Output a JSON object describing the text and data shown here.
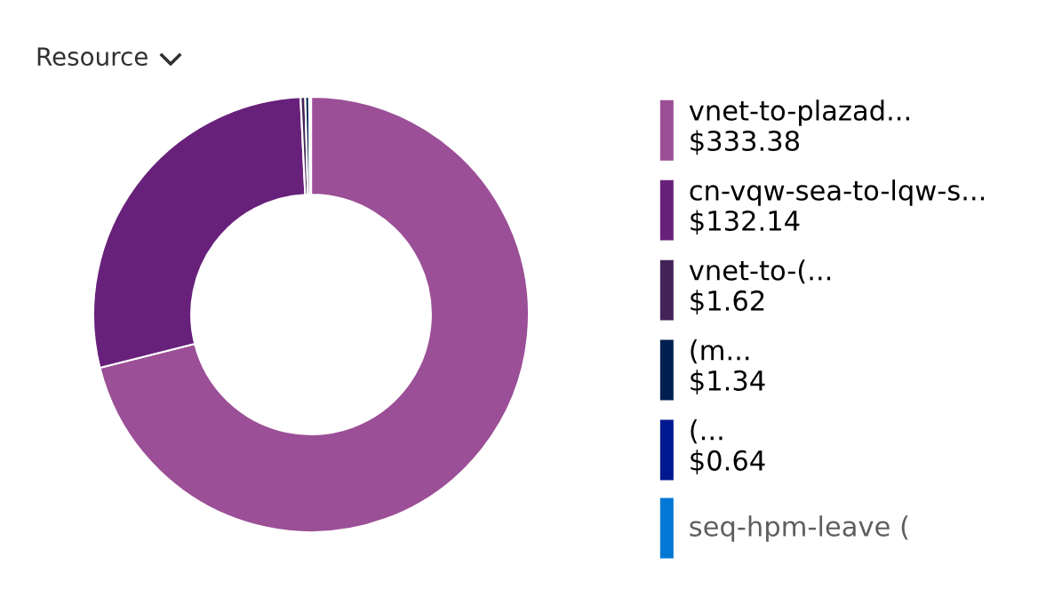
{
  "chart_data": {
    "type": "donut",
    "title": "Resource",
    "categories": [
      "vnet-to-plazad...",
      "cn-vqw-sea-to-lqw-s...",
      "vnet-to-(...",
      "(m...",
      "(...",
      "seq-hpm-leave ("
    ],
    "values": [
      333.38,
      132.14,
      1.62,
      1.34,
      0.64,
      null
    ],
    "value_labels": [
      "$333.38",
      "$132.14",
      "$1.62",
      "$1.34",
      "$0.64",
      null
    ],
    "colors": [
      "#9b4f96",
      "#68217a",
      "#442359",
      "#002050",
      "#00188f",
      "#0078d4"
    ],
    "legend": "right"
  }
}
